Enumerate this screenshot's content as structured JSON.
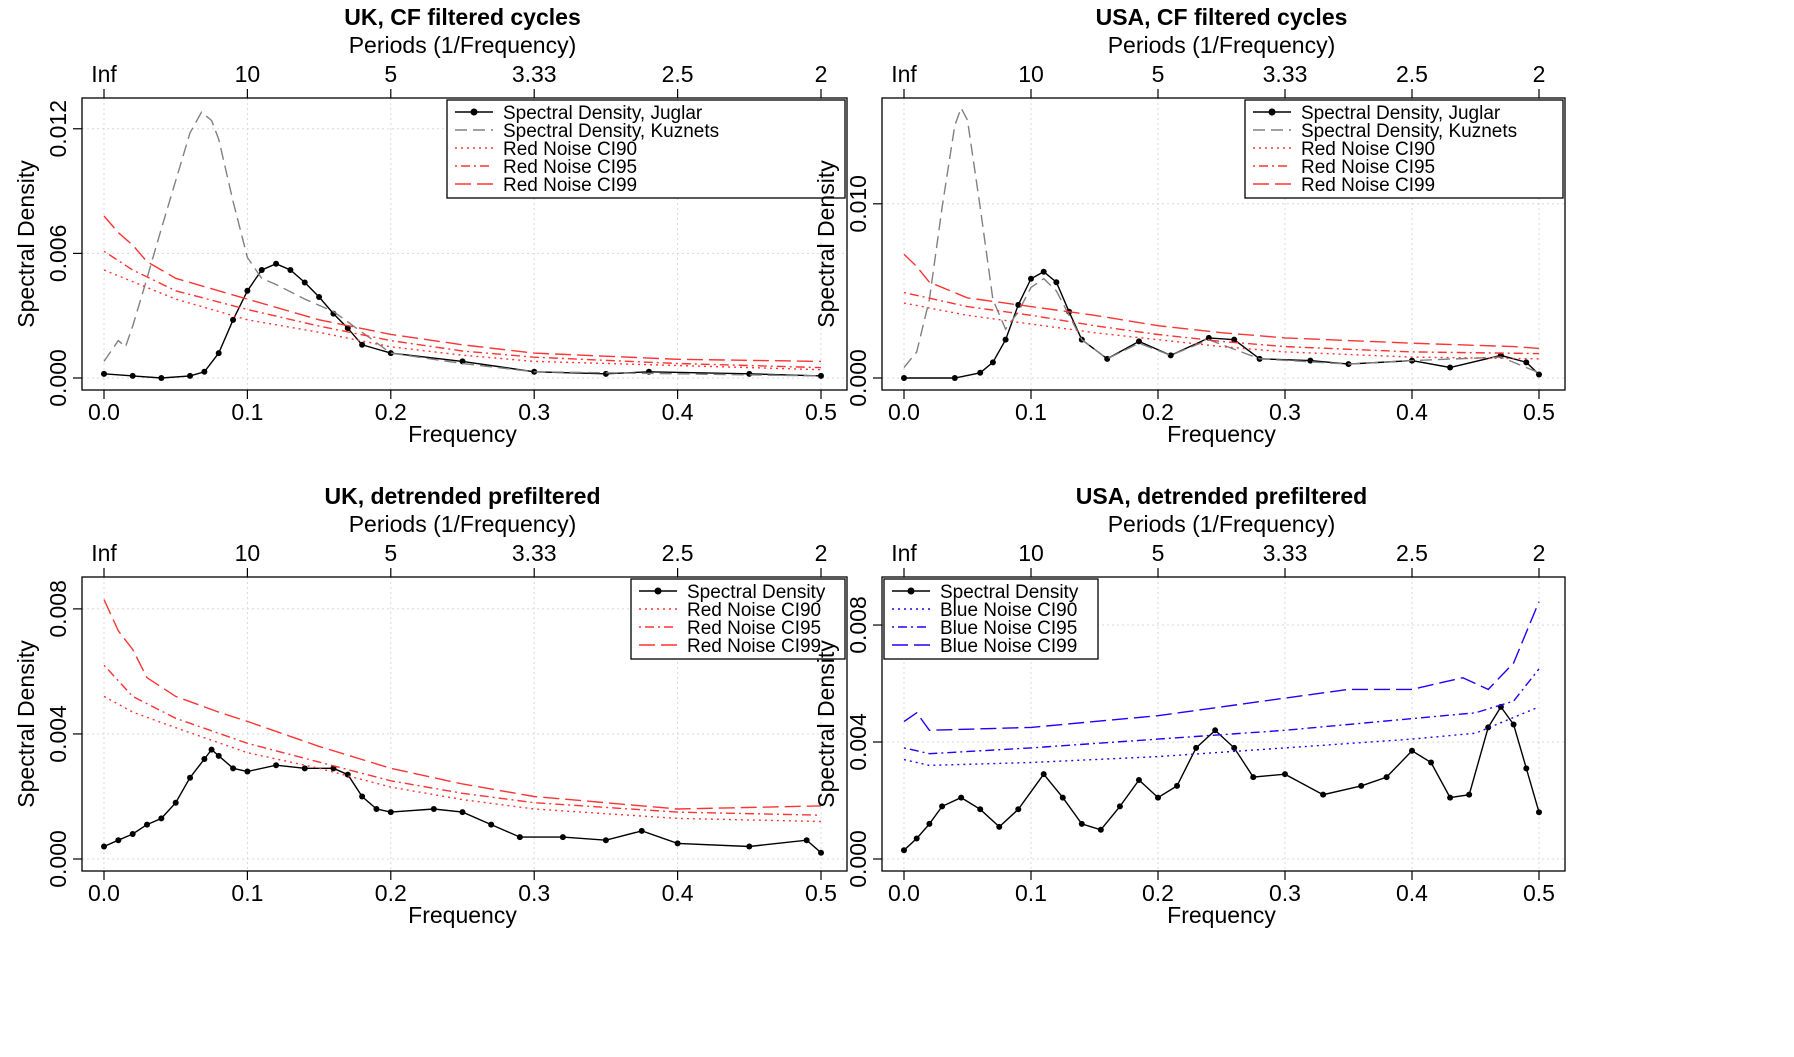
{
  "chart_data": [
    {
      "type": "line",
      "title": "UK, CF filtered cycles",
      "xlabel": "Frequency",
      "ylabel": "Spectral Density",
      "top_axis_label": "Periods (1/Frequency)",
      "x_ticks": [
        "0.0",
        "0.1",
        "0.2",
        "0.3",
        "0.4",
        "0.5"
      ],
      "top_ticks": [
        "Inf",
        "10",
        "5",
        "3.33",
        "2.5",
        "2"
      ],
      "y_ticks": [
        "0.000",
        "0.006",
        "0.012"
      ],
      "xlim": [
        0,
        0.5
      ],
      "ylim": [
        0,
        0.013
      ],
      "grid": true,
      "legend_position": "top-right",
      "series": [
        {
          "name": "Spectral Density, Juglar",
          "color": "#000000",
          "style": "solid-points",
          "x": [
            0,
            0.02,
            0.04,
            0.06,
            0.07,
            0.08,
            0.09,
            0.1,
            0.11,
            0.12,
            0.13,
            0.14,
            0.15,
            0.16,
            0.17,
            0.18,
            0.2,
            0.25,
            0.3,
            0.35,
            0.38,
            0.45,
            0.5
          ],
          "values": [
            0.0002,
            0.0001,
            0.0,
            0.0001,
            0.0003,
            0.0012,
            0.0028,
            0.0042,
            0.0052,
            0.0055,
            0.0052,
            0.0046,
            0.0039,
            0.0031,
            0.0024,
            0.0016,
            0.0012,
            0.0008,
            0.0003,
            0.0002,
            0.0003,
            0.0002,
            0.0001
          ]
        },
        {
          "name": "Spectral Density, Kuznets",
          "color": "#808080",
          "style": "dashed",
          "x": [
            0,
            0.01,
            0.015,
            0.02,
            0.03,
            0.04,
            0.05,
            0.06,
            0.068,
            0.075,
            0.08,
            0.09,
            0.1,
            0.11,
            0.12,
            0.14,
            0.16,
            0.18,
            0.2,
            0.25,
            0.3,
            0.4,
            0.5
          ],
          "values": [
            0.0008,
            0.0018,
            0.0015,
            0.0025,
            0.0048,
            0.0072,
            0.0095,
            0.0118,
            0.0128,
            0.0124,
            0.0115,
            0.0085,
            0.0058,
            0.0048,
            0.0045,
            0.0038,
            0.0032,
            0.0022,
            0.0012,
            0.0007,
            0.0003,
            0.0002,
            0.0001
          ]
        },
        {
          "name": "Red Noise CI90",
          "color": "#ff3333",
          "style": "dotted",
          "x": [
            0,
            0.05,
            0.1,
            0.15,
            0.2,
            0.25,
            0.3,
            0.4,
            0.5
          ],
          "values": [
            0.0052,
            0.0038,
            0.0028,
            0.0022,
            0.0015,
            0.0011,
            0.0008,
            0.0006,
            0.0004
          ]
        },
        {
          "name": "Red Noise CI95",
          "color": "#ff3333",
          "style": "dotdash",
          "x": [
            0,
            0.02,
            0.05,
            0.1,
            0.15,
            0.2,
            0.25,
            0.3,
            0.4,
            0.5
          ],
          "values": [
            0.0061,
            0.0052,
            0.0042,
            0.0033,
            0.0025,
            0.0018,
            0.0013,
            0.001,
            0.0007,
            0.0005
          ]
        },
        {
          "name": "Red Noise CI99",
          "color": "#ff3333",
          "style": "longdash",
          "x": [
            0,
            0.01,
            0.02,
            0.03,
            0.05,
            0.08,
            0.1,
            0.15,
            0.2,
            0.25,
            0.3,
            0.4,
            0.5
          ],
          "values": [
            0.0078,
            0.007,
            0.0064,
            0.0056,
            0.0048,
            0.0042,
            0.0038,
            0.0028,
            0.0021,
            0.0016,
            0.0012,
            0.0009,
            0.0008
          ]
        }
      ]
    },
    {
      "type": "line",
      "title": "USA, CF filtered cycles",
      "xlabel": "Frequency",
      "ylabel": "Spectral Density",
      "top_axis_label": "Periods (1/Frequency)",
      "x_ticks": [
        "0.0",
        "0.1",
        "0.2",
        "0.3",
        "0.4",
        "0.5"
      ],
      "top_ticks": [
        "Inf",
        "10",
        "5",
        "3.33",
        "2.5",
        "2"
      ],
      "y_ticks": [
        "0.000",
        "0.010"
      ],
      "xlim": [
        0,
        0.5
      ],
      "ylim": [
        0,
        0.0155
      ],
      "grid": true,
      "legend_position": "top-right",
      "series": [
        {
          "name": "Spectral Density, Juglar",
          "color": "#000000",
          "style": "solid-points",
          "x": [
            0,
            0.04,
            0.06,
            0.07,
            0.08,
            0.09,
            0.1,
            0.11,
            0.12,
            0.13,
            0.14,
            0.16,
            0.185,
            0.21,
            0.24,
            0.26,
            0.28,
            0.32,
            0.35,
            0.4,
            0.43,
            0.47,
            0.49,
            0.5
          ],
          "values": [
            0.0,
            0.0,
            0.0003,
            0.0009,
            0.0022,
            0.0042,
            0.0057,
            0.0061,
            0.0055,
            0.0038,
            0.0022,
            0.0011,
            0.0021,
            0.0013,
            0.0023,
            0.0022,
            0.0011,
            0.001,
            0.0008,
            0.001,
            0.0006,
            0.0013,
            0.0009,
            0.0002
          ]
        },
        {
          "name": "Spectral Density, Kuznets",
          "color": "#808080",
          "style": "dashed",
          "x": [
            0,
            0.01,
            0.02,
            0.03,
            0.04,
            0.045,
            0.05,
            0.06,
            0.07,
            0.08,
            0.09,
            0.1,
            0.11,
            0.12,
            0.14,
            0.16,
            0.185,
            0.21,
            0.24,
            0.28,
            0.35,
            0.4,
            0.47,
            0.5
          ],
          "values": [
            0.0006,
            0.0015,
            0.0045,
            0.0098,
            0.0145,
            0.0155,
            0.0148,
            0.0098,
            0.0045,
            0.0028,
            0.0038,
            0.0052,
            0.0057,
            0.005,
            0.0022,
            0.0011,
            0.002,
            0.0013,
            0.0022,
            0.0011,
            0.0008,
            0.001,
            0.0012,
            0.0003
          ]
        },
        {
          "name": "Red Noise CI90",
          "color": "#ff3333",
          "style": "dotted",
          "x": [
            0,
            0.05,
            0.1,
            0.15,
            0.2,
            0.25,
            0.3,
            0.4,
            0.5
          ],
          "values": [
            0.0043,
            0.0036,
            0.0031,
            0.0026,
            0.0022,
            0.0018,
            0.0015,
            0.0012,
            0.0011
          ]
        },
        {
          "name": "Red Noise CI95",
          "color": "#ff3333",
          "style": "dotdash",
          "x": [
            0,
            0.05,
            0.1,
            0.15,
            0.2,
            0.25,
            0.3,
            0.4,
            0.5
          ],
          "values": [
            0.0049,
            0.0041,
            0.0036,
            0.003,
            0.0025,
            0.0021,
            0.0018,
            0.0015,
            0.0014
          ]
        },
        {
          "name": "Red Noise CI99",
          "color": "#ff3333",
          "style": "longdash",
          "x": [
            0,
            0.01,
            0.02,
            0.05,
            0.1,
            0.15,
            0.2,
            0.25,
            0.3,
            0.4,
            0.48,
            0.5
          ],
          "values": [
            0.0071,
            0.0064,
            0.0055,
            0.0046,
            0.0041,
            0.0036,
            0.003,
            0.0026,
            0.0023,
            0.002,
            0.0018,
            0.0017
          ]
        }
      ]
    },
    {
      "type": "line",
      "title": "UK, detrended prefiltered",
      "xlabel": "Frequency",
      "ylabel": "Spectral Density",
      "top_axis_label": "Periods (1/Frequency)",
      "x_ticks": [
        "0.0",
        "0.1",
        "0.2",
        "0.3",
        "0.4",
        "0.5"
      ],
      "top_ticks": [
        "Inf",
        "10",
        "5",
        "3.33",
        "2.5",
        "2"
      ],
      "y_ticks": [
        "0.000",
        "0.004",
        "0.008"
      ],
      "xlim": [
        0,
        0.5
      ],
      "ylim": [
        0,
        0.0087
      ],
      "grid": true,
      "legend_position": "top-right",
      "series": [
        {
          "name": "Spectral Density",
          "color": "#000000",
          "style": "solid-points",
          "x": [
            0,
            0.01,
            0.02,
            0.03,
            0.04,
            0.05,
            0.06,
            0.07,
            0.075,
            0.08,
            0.09,
            0.1,
            0.12,
            0.14,
            0.16,
            0.17,
            0.18,
            0.19,
            0.2,
            0.23,
            0.25,
            0.27,
            0.29,
            0.32,
            0.35,
            0.375,
            0.4,
            0.45,
            0.49,
            0.5
          ],
          "values": [
            0.0004,
            0.0006,
            0.0008,
            0.0011,
            0.0013,
            0.0018,
            0.0026,
            0.0032,
            0.0035,
            0.0033,
            0.0029,
            0.0028,
            0.003,
            0.0029,
            0.0029,
            0.0027,
            0.002,
            0.0016,
            0.0015,
            0.0016,
            0.0015,
            0.0011,
            0.0007,
            0.0007,
            0.0006,
            0.0009,
            0.0005,
            0.0004,
            0.0006,
            0.0002
          ]
        },
        {
          "name": "Red Noise CI90",
          "color": "#ff3333",
          "style": "dotted",
          "x": [
            0,
            0.02,
            0.05,
            0.1,
            0.15,
            0.2,
            0.25,
            0.3,
            0.4,
            0.5
          ],
          "values": [
            0.0052,
            0.0047,
            0.0042,
            0.0034,
            0.0029,
            0.0023,
            0.0019,
            0.0016,
            0.0013,
            0.0012
          ]
        },
        {
          "name": "Red Noise CI95",
          "color": "#ff3333",
          "style": "dotdash",
          "x": [
            0,
            0.02,
            0.05,
            0.1,
            0.15,
            0.2,
            0.25,
            0.3,
            0.4,
            0.5
          ],
          "values": [
            0.0062,
            0.0052,
            0.0045,
            0.0037,
            0.0031,
            0.0025,
            0.0021,
            0.0018,
            0.0015,
            0.0014
          ]
        },
        {
          "name": "Red Noise CI99",
          "color": "#ff3333",
          "style": "longdash",
          "x": [
            0,
            0.01,
            0.02,
            0.03,
            0.05,
            0.08,
            0.1,
            0.15,
            0.2,
            0.25,
            0.3,
            0.4,
            0.5
          ],
          "values": [
            0.0083,
            0.0073,
            0.0067,
            0.0058,
            0.0052,
            0.0047,
            0.0044,
            0.0036,
            0.0029,
            0.0024,
            0.002,
            0.0016,
            0.0017
          ]
        }
      ]
    },
    {
      "type": "line",
      "title": "USA, detrended prefiltered",
      "xlabel": "Frequency",
      "ylabel": "Spectral Density",
      "top_axis_label": "Periods (1/Frequency)",
      "x_ticks": [
        "0.0",
        "0.1",
        "0.2",
        "0.3",
        "0.4",
        "0.5"
      ],
      "top_ticks": [
        "Inf",
        "10",
        "5",
        "3.33",
        "2.5",
        "2"
      ],
      "y_ticks": [
        "0.000",
        "0.004",
        "0.008"
      ],
      "xlim": [
        0,
        0.5
      ],
      "ylim": [
        0,
        0.0093
      ],
      "grid": true,
      "legend_position": "top-left",
      "series": [
        {
          "name": "Spectral Density",
          "color": "#000000",
          "style": "solid-points",
          "x": [
            0,
            0.01,
            0.02,
            0.03,
            0.045,
            0.06,
            0.075,
            0.09,
            0.11,
            0.125,
            0.14,
            0.155,
            0.17,
            0.185,
            0.2,
            0.215,
            0.23,
            0.245,
            0.26,
            0.275,
            0.3,
            0.33,
            0.36,
            0.38,
            0.4,
            0.415,
            0.43,
            0.445,
            0.46,
            0.47,
            0.48,
            0.49,
            0.5
          ],
          "values": [
            0.0003,
            0.0007,
            0.0012,
            0.0018,
            0.0021,
            0.0017,
            0.0011,
            0.0017,
            0.0029,
            0.0021,
            0.0012,
            0.001,
            0.0018,
            0.0027,
            0.0021,
            0.0025,
            0.0038,
            0.0044,
            0.0038,
            0.0028,
            0.0029,
            0.0022,
            0.0025,
            0.0028,
            0.0037,
            0.0033,
            0.0021,
            0.0022,
            0.0045,
            0.0052,
            0.0046,
            0.0031,
            0.0016
          ]
        },
        {
          "name": "Blue Noise CI90",
          "color": "#2200ff",
          "style": "dotted",
          "x": [
            0,
            0.02,
            0.1,
            0.2,
            0.3,
            0.4,
            0.45,
            0.5
          ],
          "values": [
            0.0034,
            0.0032,
            0.0033,
            0.0035,
            0.0038,
            0.0041,
            0.0043,
            0.0052
          ]
        },
        {
          "name": "Blue Noise CI95",
          "color": "#2200ff",
          "style": "dotdash",
          "x": [
            0,
            0.02,
            0.1,
            0.2,
            0.3,
            0.4,
            0.45,
            0.48,
            0.5
          ],
          "values": [
            0.0038,
            0.0036,
            0.0038,
            0.0041,
            0.0044,
            0.0048,
            0.005,
            0.0054,
            0.0065
          ]
        },
        {
          "name": "Blue Noise CI99",
          "color": "#2200ff",
          "style": "longdash",
          "x": [
            0,
            0.01,
            0.02,
            0.1,
            0.2,
            0.3,
            0.35,
            0.4,
            0.44,
            0.46,
            0.48,
            0.5
          ],
          "values": [
            0.0047,
            0.005,
            0.0044,
            0.0045,
            0.0049,
            0.0055,
            0.0058,
            0.0058,
            0.0062,
            0.0058,
            0.0067,
            0.0088
          ]
        }
      ]
    }
  ]
}
